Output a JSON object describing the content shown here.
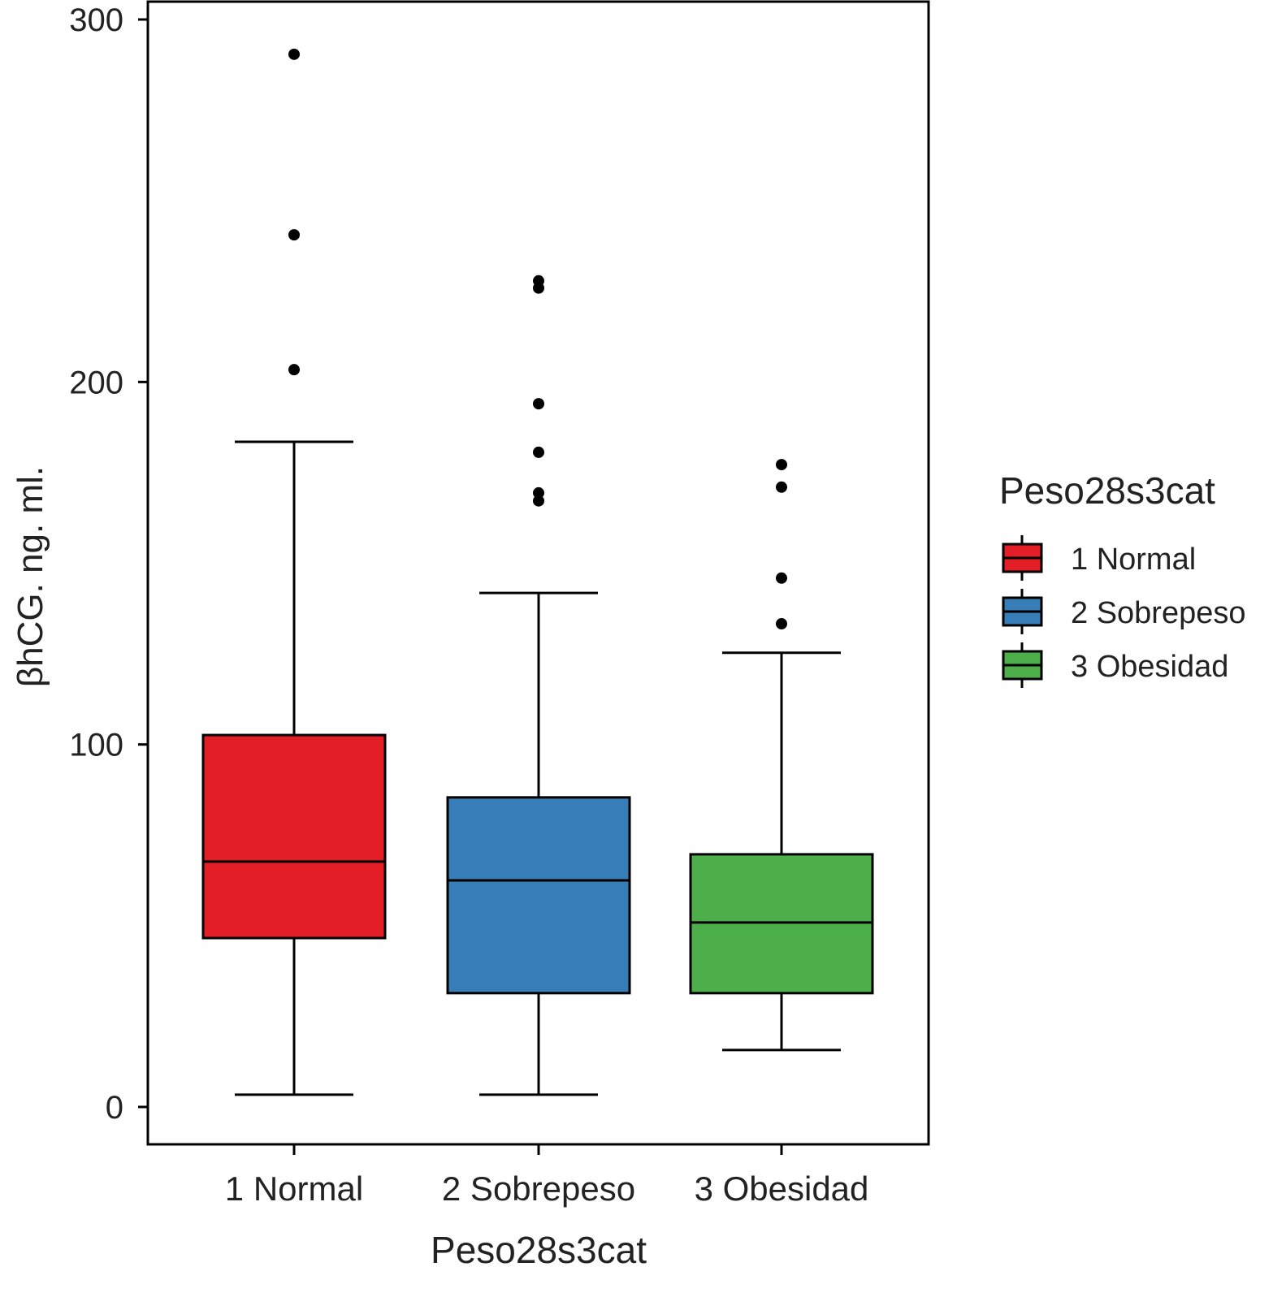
{
  "chart_data": {
    "type": "boxplot",
    "title": "",
    "xlabel": "Peso28s3cat",
    "ylabel": "βhCG. ng. ml.",
    "ylim": [
      -10,
      303
    ],
    "yticks": [
      0,
      100,
      200,
      300
    ],
    "ytick_labels": [
      "0",
      "100",
      "200",
      "300"
    ],
    "grid": false,
    "legend": {
      "title": "Peso28s3cat",
      "placement": "right"
    },
    "categories": [
      "1 Normal",
      "2 Sobrepeso",
      "3 Obesidad"
    ],
    "series": [
      {
        "name": "1 Normal",
        "color": "#E41E26",
        "whisker_low": 3.4,
        "q1": 46.6,
        "median": 67.7,
        "q3": 102.6,
        "whisker_high": 183.5,
        "outliers": [
          290.4,
          240.6,
          203.4
        ]
      },
      {
        "name": "2 Sobrepeso",
        "color": "#377EB8",
        "whisker_low": 3.4,
        "q1": 31.4,
        "median": 62.5,
        "q3": 85.4,
        "whisker_high": 141.8,
        "outliers": [
          227.9,
          225.9,
          194.0,
          180.6,
          169.4,
          167.2
        ]
      },
      {
        "name": "3 Obesidad",
        "color": "#4DAF4A",
        "whisker_low": 15.7,
        "q1": 31.4,
        "median": 50.9,
        "q3": 69.7,
        "whisker_high": 125.3,
        "outliers": [
          177.2,
          171.0,
          145.9,
          133.3
        ]
      }
    ]
  }
}
